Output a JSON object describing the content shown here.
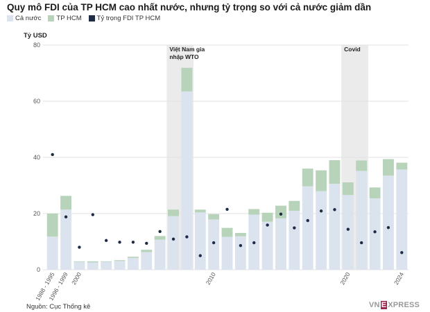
{
  "colors": {
    "national": "#dbe4ee",
    "hcm": "#b7d3b9",
    "ratio_dot": "#1f2a44",
    "shade": "#ebebeb",
    "grid": "#e2e2e2",
    "axis_text": "#555555"
  },
  "chart_data": {
    "type": "bar",
    "title": "Quy mô FDI của TP HCM cao nhất nước, nhưng tỷ trọng so với cả nước giảm dần",
    "ylabel": "Tỷ USD",
    "ylim": [
      0,
      80
    ],
    "yticks": [
      "0",
      "20",
      "40",
      "60",
      "80"
    ],
    "categories": [
      "1988 - 1995",
      "1996 - 1999",
      "2000",
      "2001",
      "2002",
      "2003",
      "2004",
      "2005",
      "2006",
      "2007",
      "2008",
      "2009",
      "2010",
      "2011",
      "2012",
      "2013",
      "2014",
      "2015",
      "2016",
      "2017",
      "2018",
      "2019",
      "2020",
      "2021",
      "2022",
      "2023",
      "2024"
    ],
    "x_tick_labels": [
      "1988 - 1995",
      "1996 - 1999",
      "2000",
      "2010",
      "2020",
      "2024"
    ],
    "series": [
      {
        "name": "Cả nước",
        "values": [
          11.8,
          21.4,
          2.8,
          2.6,
          2.8,
          3.1,
          4.2,
          6.3,
          10.7,
          19.1,
          63.5,
          20.4,
          17.9,
          11.7,
          11.9,
          19.6,
          17.1,
          18.3,
          21.0,
          29.7,
          28.0,
          30.6,
          26.6,
          35.2,
          25.4,
          33.5,
          35.7
        ]
      },
      {
        "name": "TP HCM",
        "values": [
          8.2,
          4.9,
          0.2,
          0.4,
          0.2,
          0.3,
          0.4,
          0.8,
          1.3,
          2.3,
          8.4,
          1.0,
          1.9,
          3.2,
          1.2,
          2.0,
          3.2,
          4.5,
          3.5,
          6.3,
          7.4,
          8.4,
          4.5,
          3.7,
          3.9,
          5.9,
          2.4
        ]
      },
      {
        "name": "Tỷ trọng FDI TP HCM",
        "values": [
          41.0,
          18.8,
          8.0,
          19.6,
          10.4,
          9.8,
          9.8,
          9.4,
          13.6,
          10.9,
          11.7,
          5.0,
          9.6,
          21.5,
          8.6,
          9.6,
          15.9,
          19.8,
          14.9,
          17.5,
          20.9,
          21.4,
          14.4,
          9.6,
          13.5,
          15.0,
          6.1
        ]
      }
    ],
    "annotations": [
      {
        "text_lines": [
          "Việt Nam gia",
          "nhập WTO"
        ],
        "category_start": "2007",
        "category_end": "2008"
      },
      {
        "text_lines": [
          "Covid"
        ],
        "category_start": "2020",
        "category_end": "2021"
      }
    ],
    "legend_position": "top-left",
    "grid": true
  },
  "footer": {
    "source": "Nguồn: Cục Thống kê",
    "logo_left": "VN",
    "logo_mid": "E",
    "logo_right": "XPRESS"
  }
}
